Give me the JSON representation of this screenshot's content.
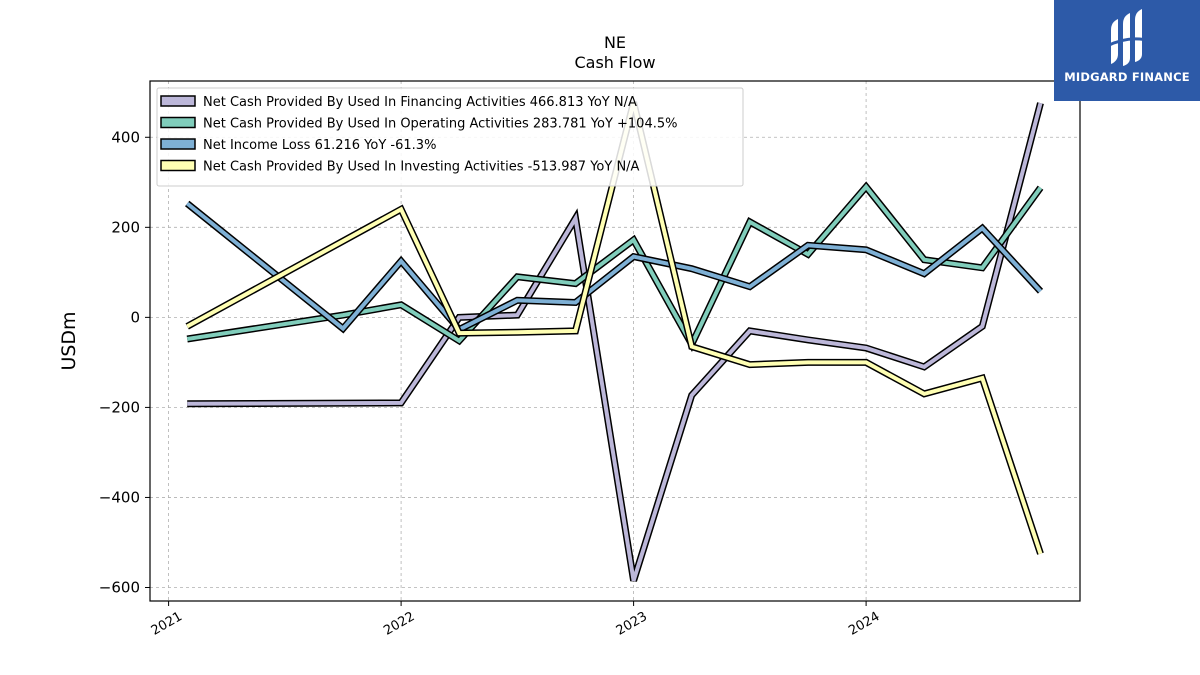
{
  "brand": {
    "name": "MIDGARD FINANCE",
    "color": "#2d5aa8",
    "icon": "midgard-logo-icon"
  },
  "chart_data": {
    "type": "line",
    "title": "NE",
    "subtitle": "Cash Flow",
    "xlabel": "",
    "ylabel": "USDm",
    "xlim": [
      2020.92,
      2024.92
    ],
    "ylim": [
      -630,
      525
    ],
    "x_ticks": [
      2021,
      2022,
      2023,
      2024
    ],
    "x_tick_labels": [
      "2021",
      "2022",
      "2023",
      "2024"
    ],
    "y_ticks": [
      -600,
      -400,
      -200,
      0,
      200,
      400
    ],
    "y_tick_labels": [
      "−600",
      "−400",
      "−200",
      "0",
      "200",
      "400"
    ],
    "grid": true,
    "legend_position": "top-left",
    "series": [
      {
        "name": "Net Cash Provided By Used In Financing Activities",
        "legend": "Net Cash Provided By Used In Financing Activities  466.813 YoY N/A",
        "color": "#bcb7d9",
        "x": [
          2021.08,
          2022.0,
          2022.25,
          2022.5,
          2022.75,
          2023.0,
          2023.25,
          2023.5,
          2023.75,
          2024.0,
          2024.25,
          2024.5,
          2024.75
        ],
        "y": [
          -192,
          -190,
          0,
          5,
          220,
          -585,
          -173,
          -30,
          -50,
          -68,
          -110,
          -20,
          476
        ]
      },
      {
        "name": "Net Cash Provided By Used In Operating Activities",
        "legend": "Net Cash Provided By Used In Operating Activities  283.781 YoY +104.5%",
        "color": "#80cdbb",
        "x": [
          2021.08,
          2021.75,
          2022.0,
          2022.25,
          2022.5,
          2022.75,
          2023.0,
          2023.25,
          2023.5,
          2023.75,
          2024.0,
          2024.25,
          2024.5,
          2024.75
        ],
        "y": [
          -48,
          5,
          28,
          -52,
          90,
          75,
          172,
          -60,
          212,
          140,
          290,
          128,
          110,
          288
        ]
      },
      {
        "name": "Net Income Loss",
        "legend": "Net Income Loss  61.216 YoY -61.3%",
        "color": "#7eb0d5",
        "x": [
          2021.08,
          2021.75,
          2022.0,
          2022.25,
          2022.5,
          2022.75,
          2023.0,
          2023.25,
          2023.5,
          2023.75,
          2024.0,
          2024.25,
          2024.5,
          2024.75
        ],
        "y": [
          253,
          -25,
          125,
          -27,
          38,
          33,
          135,
          108,
          68,
          160,
          150,
          97,
          198,
          58
        ]
      },
      {
        "name": "Net Cash Provided By Used In Investing Activities",
        "legend": "Net Cash Provided By Used In Investing Activities  -513.987 YoY N/A",
        "color": "#ffffb3",
        "x": [
          2021.08,
          2022.0,
          2022.25,
          2022.5,
          2022.75,
          2023.0,
          2023.25,
          2023.5,
          2023.75,
          2024.0,
          2024.25,
          2024.5,
          2024.75
        ],
        "y": [
          -20,
          240,
          -35,
          -33,
          -30,
          478,
          -65,
          -105,
          -100,
          -100,
          -170,
          -135,
          -525
        ]
      }
    ]
  }
}
